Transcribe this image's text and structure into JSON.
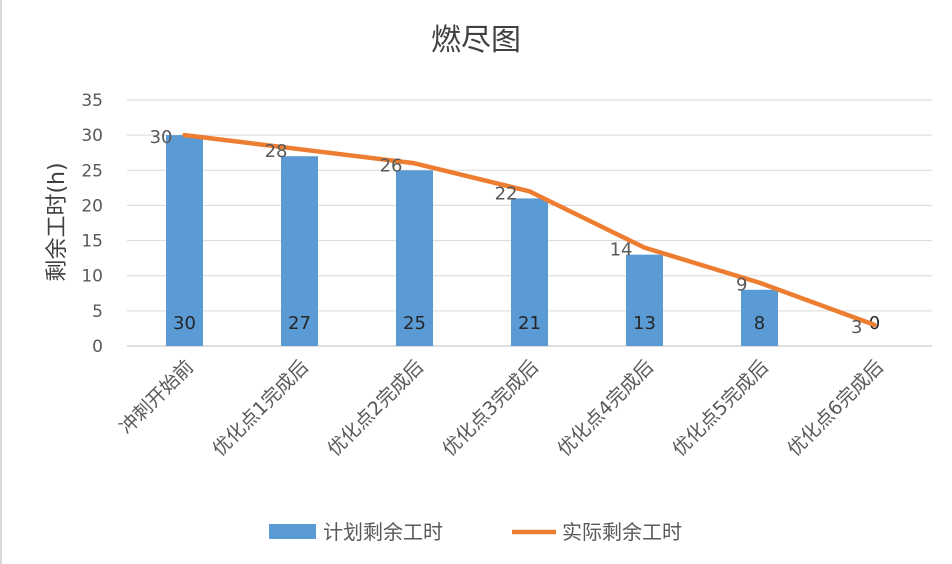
{
  "chart_data": {
    "type": "bar+line",
    "title": "燃尽图",
    "xlabel": "",
    "ylabel": "剩余工时(h)",
    "ylim": [
      0,
      35
    ],
    "yticks": [
      0,
      5,
      10,
      15,
      20,
      25,
      30,
      35
    ],
    "grid": true,
    "legend_position": "bottom",
    "categories": [
      "冲刺开始前",
      "优化点1完成后",
      "优化点2完成后",
      "优化点3完成后",
      "优化点4完成后",
      "优化点5完成后",
      "优化点6完成后"
    ],
    "series": [
      {
        "name": "计划剩余工时",
        "type": "bar",
        "color": "#5b9bd5",
        "values": [
          30,
          27,
          25,
          21,
          13,
          8,
          0
        ]
      },
      {
        "name": "实际剩余工时",
        "type": "line",
        "color": "#ed7d31",
        "values": [
          30,
          28,
          26,
          22,
          14,
          9,
          3
        ]
      }
    ]
  }
}
